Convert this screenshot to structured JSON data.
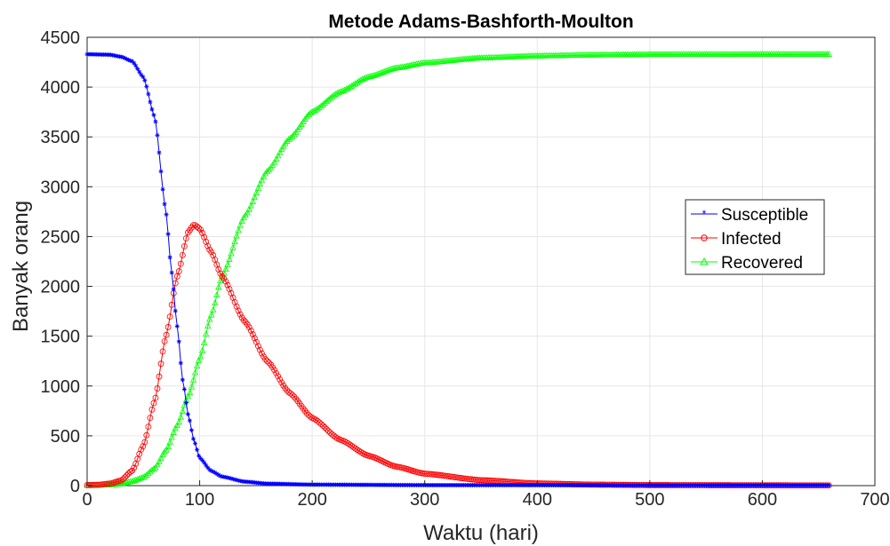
{
  "chart_data": {
    "type": "line",
    "title": "Metode Adams-Bashforth-Moulton",
    "xlabel": "Waktu (hari)",
    "ylabel": "Banyak orang",
    "xlim": [
      0,
      700
    ],
    "ylim": [
      0,
      4500
    ],
    "xticks": [
      0,
      100,
      200,
      300,
      400,
      500,
      600,
      700
    ],
    "yticks": [
      0,
      500,
      1000,
      1500,
      2000,
      2500,
      3000,
      3500,
      4000,
      4500
    ],
    "grid": true,
    "legend_position": "right",
    "x_end": 660,
    "series": [
      {
        "name": "Susceptible",
        "color": "#0000ff",
        "marker": "star",
        "points": [
          [
            0,
            4330
          ],
          [
            20,
            4325
          ],
          [
            30,
            4305
          ],
          [
            40,
            4260
          ],
          [
            50,
            4100
          ],
          [
            60,
            3700
          ],
          [
            70,
            2750
          ],
          [
            75,
            2150
          ],
          [
            80,
            1600
          ],
          [
            85,
            1050
          ],
          [
            90,
            700
          ],
          [
            95,
            450
          ],
          [
            100,
            280
          ],
          [
            110,
            150
          ],
          [
            120,
            90
          ],
          [
            140,
            40
          ],
          [
            160,
            20
          ],
          [
            200,
            10
          ],
          [
            300,
            5
          ],
          [
            660,
            3
          ]
        ]
      },
      {
        "name": "Infected",
        "color": "#ff0000",
        "marker": "circle",
        "points": [
          [
            0,
            5
          ],
          [
            10,
            8
          ],
          [
            20,
            20
          ],
          [
            30,
            50
          ],
          [
            40,
            150
          ],
          [
            50,
            400
          ],
          [
            60,
            850
          ],
          [
            70,
            1500
          ],
          [
            80,
            2100
          ],
          [
            90,
            2550
          ],
          [
            95,
            2620
          ],
          [
            100,
            2580
          ],
          [
            110,
            2350
          ],
          [
            120,
            2100
          ],
          [
            140,
            1650
          ],
          [
            160,
            1250
          ],
          [
            180,
            930
          ],
          [
            200,
            680
          ],
          [
            225,
            460
          ],
          [
            250,
            300
          ],
          [
            275,
            190
          ],
          [
            300,
            120
          ],
          [
            350,
            55
          ],
          [
            400,
            22
          ],
          [
            450,
            10
          ],
          [
            500,
            5
          ],
          [
            660,
            2
          ]
        ]
      },
      {
        "name": "Recovered",
        "color": "#00ff00",
        "marker": "triangle",
        "points": [
          [
            0,
            0
          ],
          [
            20,
            5
          ],
          [
            30,
            15
          ],
          [
            40,
            40
          ],
          [
            50,
            80
          ],
          [
            60,
            170
          ],
          [
            70,
            350
          ],
          [
            80,
            600
          ],
          [
            90,
            900
          ],
          [
            100,
            1270
          ],
          [
            110,
            1700
          ],
          [
            120,
            2100
          ],
          [
            140,
            2700
          ],
          [
            160,
            3150
          ],
          [
            180,
            3480
          ],
          [
            200,
            3750
          ],
          [
            225,
            3950
          ],
          [
            250,
            4100
          ],
          [
            275,
            4190
          ],
          [
            300,
            4240
          ],
          [
            350,
            4290
          ],
          [
            400,
            4310
          ],
          [
            450,
            4320
          ],
          [
            500,
            4325
          ],
          [
            660,
            4327
          ]
        ]
      }
    ]
  }
}
